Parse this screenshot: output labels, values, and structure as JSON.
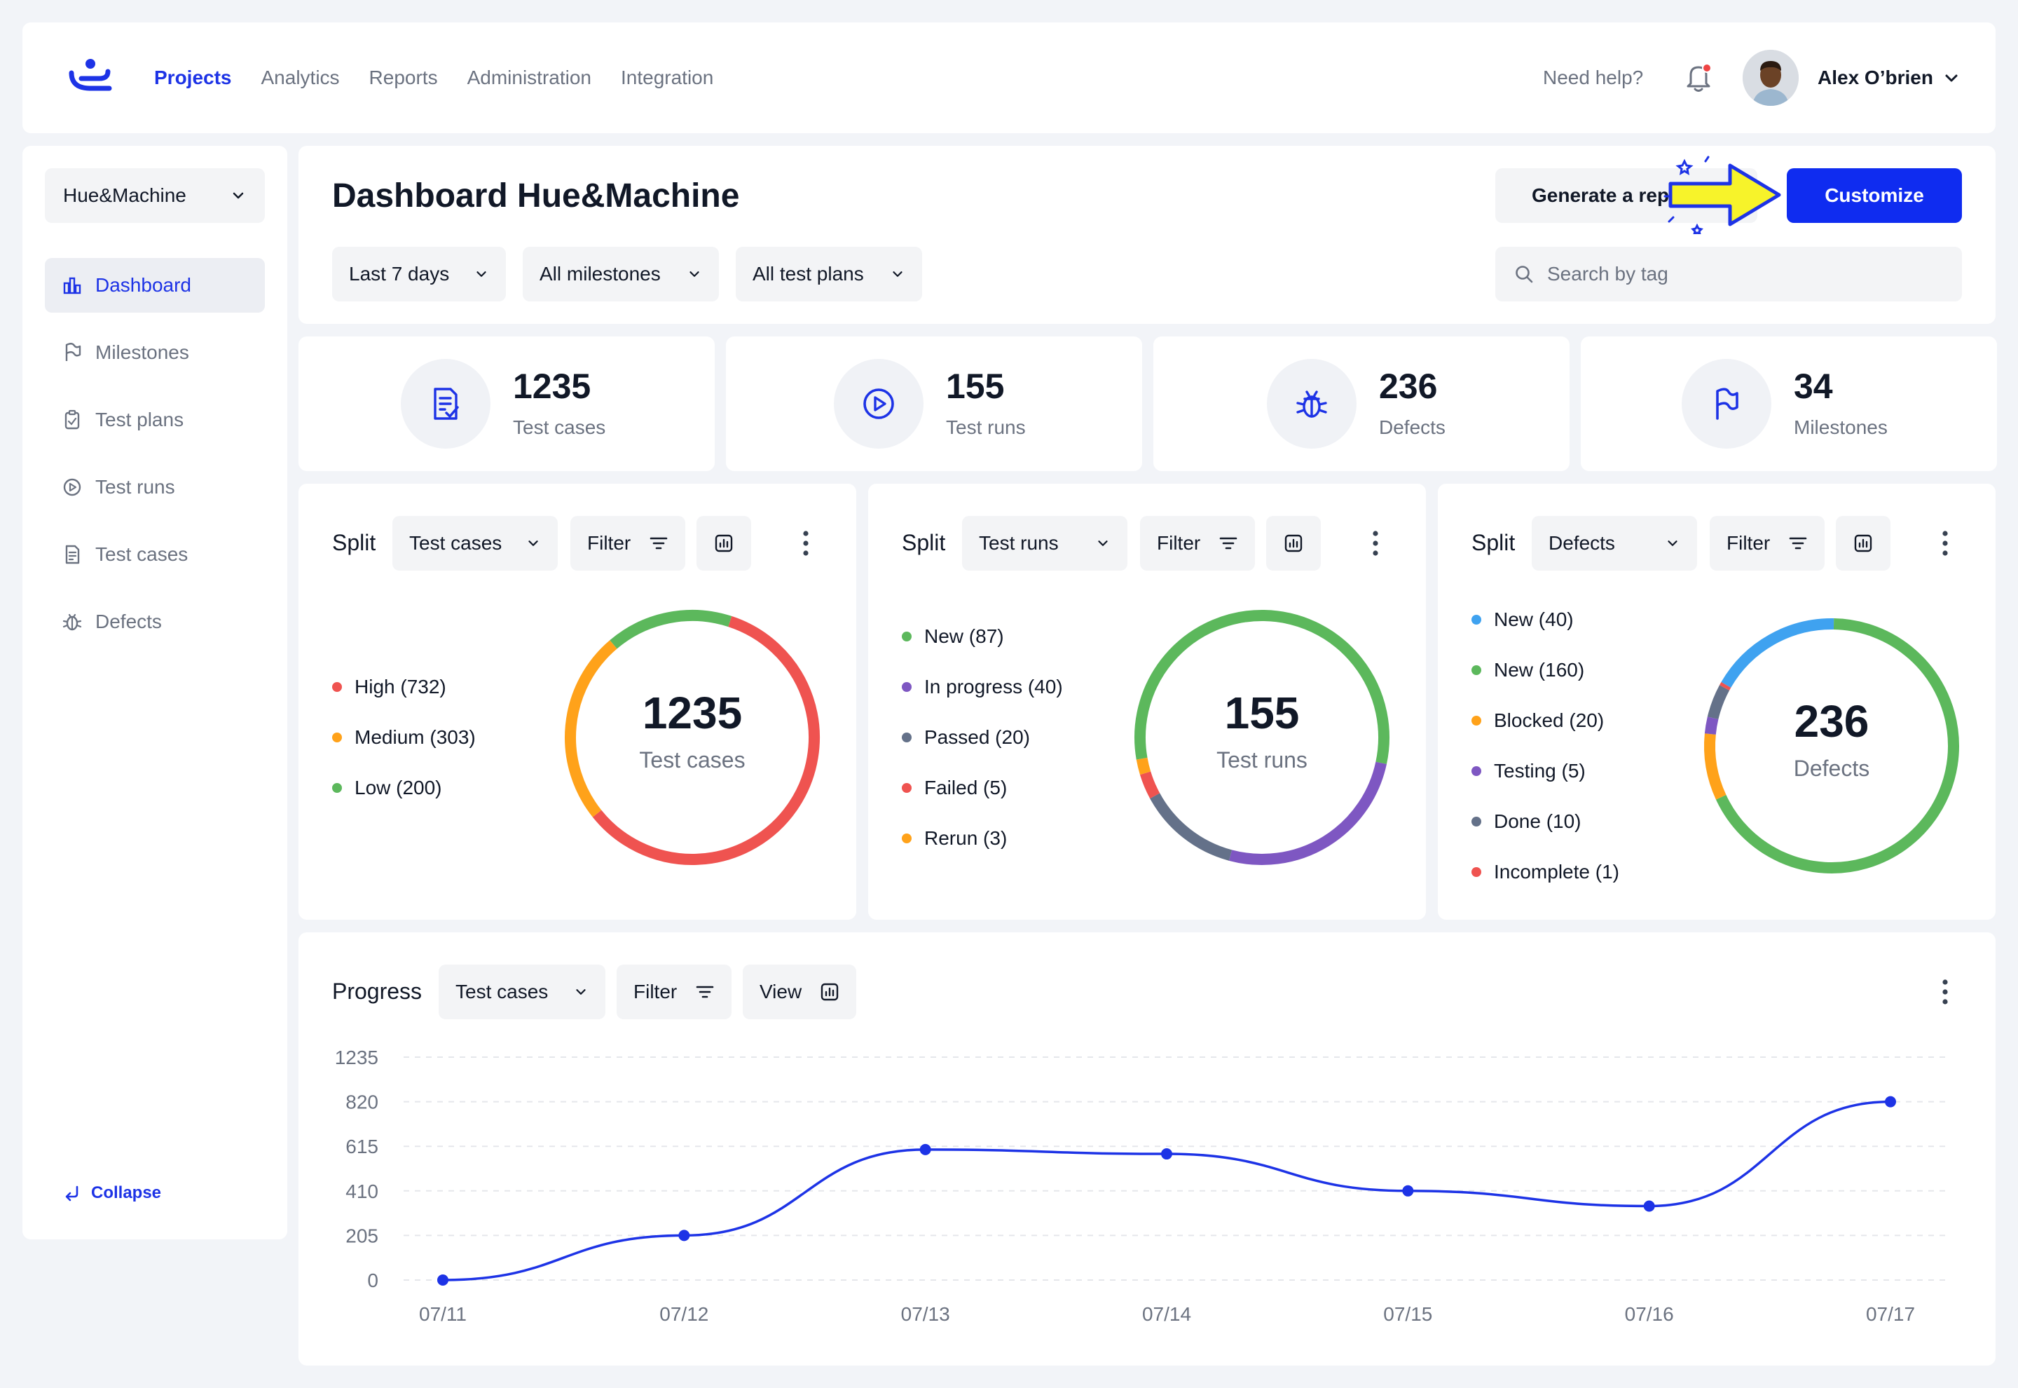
{
  "nav": {
    "links": [
      "Projects",
      "Analytics",
      "Reports",
      "Administration",
      "Integration"
    ],
    "help": "Need help?",
    "user": "Alex O’brien"
  },
  "sidebar": {
    "project": "Hue&Machine",
    "items": [
      "Dashboard",
      "Milestones",
      "Test plans",
      "Test runs",
      "Test cases",
      "Defects"
    ],
    "collapse": "Collapse"
  },
  "header": {
    "title": "Dashboard Hue&Machine",
    "filters": [
      "Last 7 days",
      "All milestones",
      "All test plans"
    ],
    "generate": "Generate a report",
    "customize": "Customize",
    "search_placeholder": "Search by tag"
  },
  "stats": [
    {
      "value": "1235",
      "label": "Test cases",
      "icon": "test-cases-icon"
    },
    {
      "value": "155",
      "label": "Test runs",
      "icon": "play-icon"
    },
    {
      "value": "236",
      "label": "Defects",
      "icon": "bug-icon"
    },
    {
      "value": "34",
      "label": "Milestones",
      "icon": "flag-icon"
    }
  ],
  "splits": [
    {
      "title": "Split",
      "select": "Test cases",
      "filter": "Filter",
      "center_value": "1235",
      "center_label": "Test cases",
      "legend": [
        {
          "label": "High (732)",
          "value": 732,
          "color": "#ef5350"
        },
        {
          "label": "Medium (303)",
          "value": 303,
          "color": "#ffa21a"
        },
        {
          "label": "Low (200)",
          "value": 200,
          "color": "#5cb85c"
        }
      ]
    },
    {
      "title": "Split",
      "select": "Test runs",
      "filter": "Filter",
      "center_value": "155",
      "center_label": "Test runs",
      "legend": [
        {
          "label": "New (87)",
          "value": 87,
          "color": "#5cb85c"
        },
        {
          "label": "In progress (40)",
          "value": 40,
          "color": "#7e57c2"
        },
        {
          "label": "Passed (20)",
          "value": 20,
          "color": "#647189"
        },
        {
          "label": "Failed (5)",
          "value": 5,
          "color": "#ef5350"
        },
        {
          "label": "Rerun (3)",
          "value": 3,
          "color": "#ffa21a"
        }
      ]
    },
    {
      "title": "Split",
      "select": "Defects",
      "filter": "Filter",
      "center_value": "236",
      "center_label": "Defects",
      "legend": [
        {
          "label": "New (40)",
          "value": 40,
          "color": "#3fa2f0"
        },
        {
          "label": "New (160)",
          "value": 160,
          "color": "#5cb85c"
        },
        {
          "label": "Blocked (20)",
          "value": 20,
          "color": "#ffa21a"
        },
        {
          "label": "Testing (5)",
          "value": 5,
          "color": "#7e57c2"
        },
        {
          "label": "Done (10)",
          "value": 10,
          "color": "#647189"
        },
        {
          "label": "Incomplete (1)",
          "value": 1,
          "color": "#ef5350"
        }
      ]
    }
  ],
  "progress": {
    "title": "Progress",
    "select": "Test cases",
    "filter": "Filter",
    "view": "View"
  },
  "chart_data": {
    "type": "line",
    "x": [
      "07/11",
      "07/12",
      "07/13",
      "07/14",
      "07/15",
      "07/16",
      "07/17"
    ],
    "series": [
      {
        "values": [
          0,
          205,
          600,
          580,
          410,
          340,
          820
        ],
        "color": "#1d33e6"
      }
    ],
    "yticks": [
      0,
      205,
      410,
      615,
      820,
      1235
    ],
    "grid": true
  }
}
